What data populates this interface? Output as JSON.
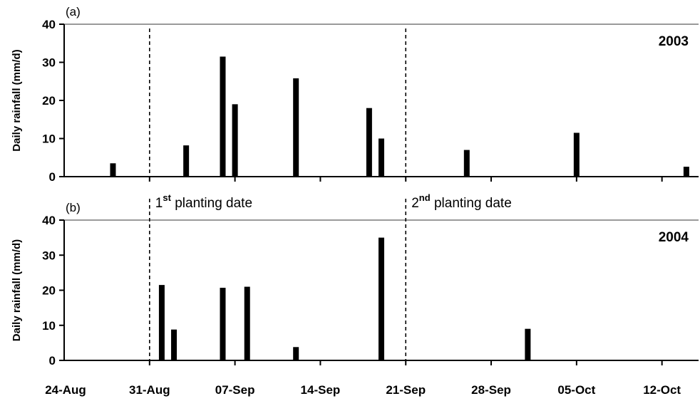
{
  "chart_data": [
    {
      "type": "bar",
      "panel_label": "(a)",
      "year_label": "2003",
      "ylabel": "Daily rainfall (mm/d)",
      "ylim": [
        0,
        40
      ],
      "yticks": [
        0,
        10,
        20,
        30,
        40
      ],
      "x_start": "2003-08-24",
      "x_end": "2003-10-15",
      "grid": false,
      "series": [
        {
          "dates": [
            "2003-08-28",
            "2003-09-03",
            "2003-09-06",
            "2003-09-07",
            "2003-09-12",
            "2003-09-18",
            "2003-09-19",
            "2003-09-26",
            "2003-10-05",
            "2003-10-14"
          ],
          "values": [
            3.5,
            8.2,
            31.5,
            19,
            25.8,
            18,
            10,
            7,
            11.5,
            2.6
          ]
        }
      ],
      "vlines": [
        {
          "date": "2003-08-31",
          "label_pre": "1",
          "label_sup": "st",
          "label_post": " planting date"
        },
        {
          "date": "2003-09-21",
          "label_pre": "2",
          "label_sup": "nd",
          "label_post": " planting date"
        }
      ]
    },
    {
      "type": "bar",
      "panel_label": "(b)",
      "year_label": "2004",
      "ylabel": "Daily rainfall (mm/d)",
      "ylim": [
        0,
        40
      ],
      "yticks": [
        0,
        10,
        20,
        30,
        40
      ],
      "x_start": "2004-08-24",
      "x_end": "2004-10-15",
      "xticks": [
        "24-Aug",
        "31-Aug",
        "07-Sep",
        "14-Sep",
        "21-Sep",
        "28-Sep",
        "05-Oct",
        "12-Oct"
      ],
      "grid": false,
      "series": [
        {
          "dates": [
            "2004-09-01",
            "2004-09-02",
            "2004-09-06",
            "2004-09-08",
            "2004-09-12",
            "2004-09-19",
            "2004-10-01"
          ],
          "values": [
            21.5,
            8.8,
            20.7,
            21,
            3.8,
            35,
            9
          ]
        }
      ],
      "vlines": [
        {
          "date": "2004-08-31"
        },
        {
          "date": "2004-09-21"
        }
      ]
    }
  ]
}
